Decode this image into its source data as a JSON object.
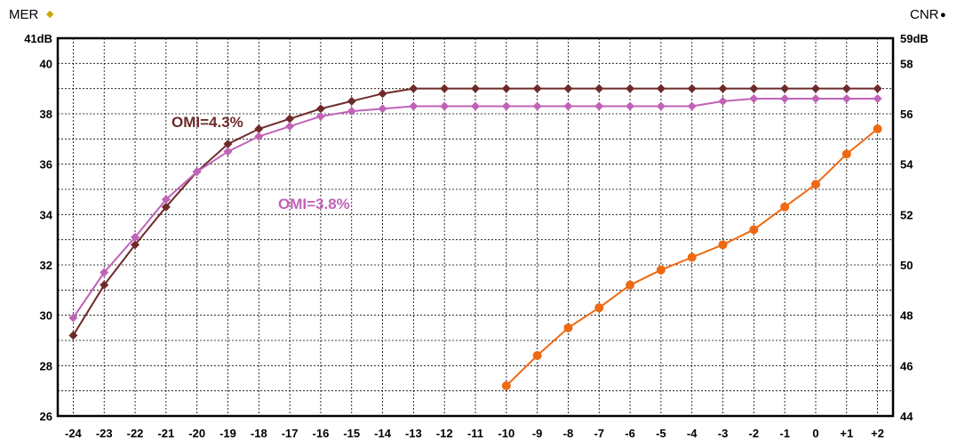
{
  "chart_data": {
    "type": "line",
    "x_tick_labels": [
      "-24",
      "-23",
      "-22",
      "-21",
      "-20",
      "-19",
      "-18",
      "-17",
      "-16",
      "-15",
      "-14",
      "-13",
      "-12",
      "-11",
      "-10",
      "-9",
      "-8",
      "-7",
      "-6",
      "-5",
      "-4",
      "-3",
      "-2",
      "-1",
      "0",
      "+1",
      "+2"
    ],
    "x_values": [
      -24,
      -23,
      -22,
      -21,
      -20,
      -19,
      -18,
      -17,
      -16,
      -15,
      -14,
      -13,
      -12,
      -11,
      -10,
      -9,
      -8,
      -7,
      -6,
      -5,
      -4,
      -3,
      -2,
      -1,
      0,
      1,
      2
    ],
    "xlim": [
      -24.5,
      2.5
    ],
    "left_axis": {
      "title": "MER",
      "legend_marker": "◆",
      "ylim": [
        26,
        41
      ],
      "ticks": [
        26,
        28,
        30,
        32,
        34,
        36,
        38,
        40,
        41
      ],
      "tick_labels": [
        "26",
        "28",
        "30",
        "32",
        "34",
        "36",
        "38",
        "40",
        "41dB"
      ]
    },
    "right_axis": {
      "title": "CNR",
      "legend_marker": "●",
      "ylim": [
        44,
        59
      ],
      "ticks": [
        44,
        46,
        48,
        50,
        52,
        54,
        56,
        58,
        59
      ],
      "tick_labels": [
        "44",
        "46",
        "48",
        "50",
        "52",
        "54",
        "56",
        "58",
        "59dB"
      ]
    },
    "grid": true,
    "series": [
      {
        "name": "OMI=4.3%",
        "axis": "left",
        "marker": "diamond",
        "color": "#6e2a2a",
        "label_color": "#6e2a2a",
        "x": [
          -24,
          -23,
          -22,
          -21,
          -20,
          -19,
          -18,
          -17,
          -16,
          -15,
          -14,
          -13,
          -12,
          -11,
          -10,
          -9,
          -8,
          -7,
          -6,
          -5,
          -4,
          -3,
          -2,
          -1,
          0,
          1,
          2
        ],
        "values": [
          29.2,
          31.2,
          32.8,
          34.3,
          35.7,
          36.8,
          37.4,
          37.8,
          38.2,
          38.5,
          38.8,
          39.0,
          39.0,
          39.0,
          39.0,
          39.0,
          39.0,
          39.0,
          39.0,
          39.0,
          39.0,
          39.0,
          39.0,
          39.0,
          39.0,
          39.0,
          39.0
        ]
      },
      {
        "name": "OMI=3.8%",
        "axis": "left",
        "marker": "diamond",
        "color": "#c063b8",
        "label_color": "#c063b8",
        "x": [
          -24,
          -23,
          -22,
          -21,
          -20,
          -19,
          -18,
          -17,
          -16,
          -15,
          -14,
          -13,
          -12,
          -11,
          -10,
          -9,
          -8,
          -7,
          -6,
          -5,
          -4,
          -3,
          -2,
          -1,
          0,
          1,
          2
        ],
        "values": [
          29.9,
          31.7,
          33.1,
          34.6,
          35.7,
          36.5,
          37.1,
          37.5,
          37.9,
          38.1,
          38.2,
          38.3,
          38.3,
          38.3,
          38.3,
          38.3,
          38.3,
          38.3,
          38.3,
          38.3,
          38.3,
          38.5,
          38.6,
          38.6,
          38.6,
          38.6,
          38.6
        ]
      },
      {
        "name": "",
        "axis": "right",
        "marker": "circle",
        "color": "#ee6a12",
        "x": [
          -10,
          -9,
          -8,
          -7,
          -6,
          -5,
          -4,
          -3,
          -2,
          -1,
          0,
          1,
          2
        ],
        "values": [
          45.2,
          46.4,
          47.5,
          48.3,
          49.2,
          49.8,
          50.3,
          50.8,
          51.4,
          52.3,
          53.2,
          54.4,
          55.4
        ]
      }
    ]
  }
}
